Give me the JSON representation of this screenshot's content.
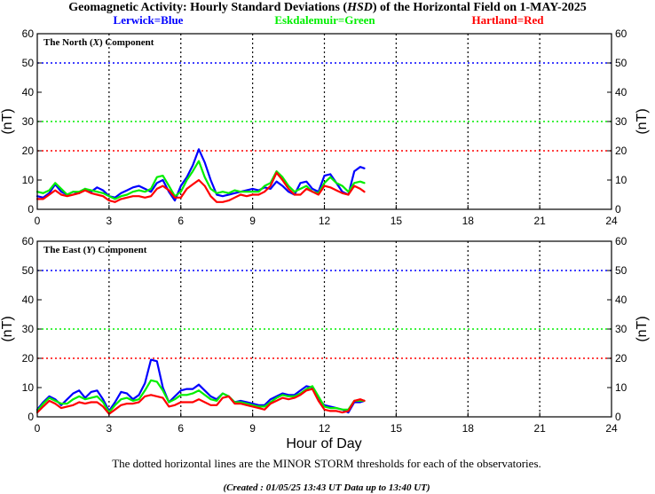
{
  "header": {
    "title_pre": "Geomagnetic Activity: Hourly Standard Deviations (",
    "title_italic": "HSD",
    "title_post": ") of the Horizontal Field on 1-MAY-2025",
    "legend": [
      {
        "label": "Lerwick=Blue",
        "color": "#0000ff"
      },
      {
        "label": "Eskdalemuir=Green",
        "color": "#00ee00"
      },
      {
        "label": "Hartland=Red",
        "color": "#ff0000"
      }
    ]
  },
  "footer": {
    "note": "The dotted horizontal lines are the MINOR STORM thresholds for each of the observatories.",
    "created": "(Created : 01/05/25 13:43 UT  Data up to 13:40 UT)"
  },
  "chart_data": [
    {
      "type": "line",
      "panel_pre": "The North (",
      "panel_italic": "X",
      "panel_post": ") Component",
      "ylabel": "(nT)",
      "xlabel": "",
      "xlim": [
        0,
        24
      ],
      "ylim": [
        0,
        60
      ],
      "xticks": [
        "0",
        "3",
        "6",
        "9",
        "12",
        "15",
        "18",
        "21",
        "24"
      ],
      "yticks": [
        "0",
        "10",
        "20",
        "30",
        "40",
        "50",
        "60"
      ],
      "thresholds": [
        {
          "observatory": "Lerwick",
          "value": 50,
          "color": "#0000ff"
        },
        {
          "observatory": "Eskdalemuir",
          "value": 30,
          "color": "#00ee00"
        },
        {
          "observatory": "Hartland",
          "value": 20,
          "color": "#ff0000"
        }
      ],
      "x": [
        0.0,
        0.25,
        0.5,
        0.75,
        1.0,
        1.25,
        1.5,
        1.75,
        2.0,
        2.25,
        2.5,
        2.75,
        3.0,
        3.25,
        3.5,
        3.75,
        4.0,
        4.25,
        4.5,
        4.75,
        5.0,
        5.25,
        5.5,
        5.75,
        6.0,
        6.25,
        6.5,
        6.75,
        7.0,
        7.25,
        7.5,
        7.75,
        8.0,
        8.25,
        8.5,
        8.75,
        9.0,
        9.25,
        9.5,
        9.75,
        10.0,
        10.25,
        10.5,
        10.75,
        11.0,
        11.25,
        11.5,
        11.75,
        12.0,
        12.25,
        12.5,
        12.75,
        13.0,
        13.25,
        13.5,
        13.67
      ],
      "series": [
        {
          "observatory": "Lerwick",
          "color": "#0000ff",
          "values": [
            4.5,
            4.0,
            5.5,
            8.5,
            6.0,
            5.0,
            6.0,
            5.5,
            7.0,
            6.0,
            7.5,
            6.5,
            4.5,
            4.0,
            5.5,
            6.5,
            7.5,
            8.0,
            7.0,
            6.0,
            9.0,
            10.0,
            6.0,
            3.0,
            8.0,
            11.0,
            15.0,
            20.5,
            16.0,
            10.0,
            5.0,
            4.5,
            5.0,
            5.5,
            6.0,
            6.5,
            7.0,
            6.5,
            7.5,
            7.0,
            9.5,
            8.0,
            6.0,
            5.0,
            9.0,
            9.5,
            7.0,
            6.0,
            11.5,
            12.0,
            9.0,
            6.0,
            5.0,
            13.0,
            14.5,
            14.0
          ]
        },
        {
          "observatory": "Eskdalemuir",
          "color": "#00ee00",
          "values": [
            6.0,
            5.5,
            6.5,
            9.0,
            7.0,
            5.0,
            6.0,
            6.0,
            7.0,
            6.5,
            6.0,
            5.5,
            4.5,
            3.5,
            4.5,
            5.0,
            6.0,
            6.5,
            6.0,
            7.0,
            11.0,
            11.5,
            8.0,
            4.5,
            6.0,
            10.0,
            13.0,
            16.5,
            11.0,
            7.0,
            5.5,
            6.0,
            5.5,
            6.5,
            6.0,
            6.0,
            6.0,
            6.0,
            8.0,
            9.0,
            13.0,
            11.0,
            8.0,
            6.0,
            7.0,
            8.0,
            6.0,
            5.5,
            9.0,
            11.0,
            9.0,
            8.0,
            6.0,
            9.0,
            9.5,
            9.0
          ]
        },
        {
          "observatory": "Hartland",
          "color": "#ff0000",
          "values": [
            3.5,
            3.5,
            5.0,
            6.5,
            5.0,
            4.5,
            5.0,
            5.5,
            6.5,
            5.5,
            5.0,
            4.5,
            3.0,
            2.5,
            3.5,
            4.0,
            4.5,
            4.5,
            4.0,
            4.5,
            7.0,
            8.0,
            6.5,
            4.0,
            4.0,
            7.0,
            8.5,
            10.0,
            8.0,
            4.5,
            2.5,
            2.5,
            3.0,
            4.0,
            5.0,
            4.5,
            5.0,
            5.0,
            6.0,
            8.0,
            12.5,
            10.0,
            7.0,
            5.0,
            5.0,
            7.0,
            6.0,
            5.0,
            8.0,
            7.5,
            6.5,
            5.5,
            5.0,
            8.0,
            7.0,
            6.0
          ]
        }
      ]
    },
    {
      "type": "line",
      "panel_pre": "The East (",
      "panel_italic": "Y",
      "panel_post": ") Component",
      "ylabel": "(nT)",
      "xlabel": "Hour of Day",
      "xlim": [
        0,
        24
      ],
      "ylim": [
        0,
        60
      ],
      "xticks": [
        "0",
        "3",
        "6",
        "9",
        "12",
        "15",
        "18",
        "21",
        "24"
      ],
      "yticks": [
        "0",
        "10",
        "20",
        "30",
        "40",
        "50",
        "60"
      ],
      "thresholds": [
        {
          "observatory": "Lerwick",
          "value": 50,
          "color": "#0000ff"
        },
        {
          "observatory": "Eskdalemuir",
          "value": 30,
          "color": "#00ee00"
        },
        {
          "observatory": "Hartland",
          "value": 20,
          "color": "#ff0000"
        }
      ],
      "x": [
        0.0,
        0.25,
        0.5,
        0.75,
        1.0,
        1.25,
        1.5,
        1.75,
        2.0,
        2.25,
        2.5,
        2.75,
        3.0,
        3.25,
        3.5,
        3.75,
        4.0,
        4.25,
        4.5,
        4.75,
        5.0,
        5.25,
        5.5,
        5.75,
        6.0,
        6.25,
        6.5,
        6.75,
        7.0,
        7.25,
        7.5,
        7.75,
        8.0,
        8.25,
        8.5,
        8.75,
        9.0,
        9.25,
        9.5,
        9.75,
        10.0,
        10.25,
        10.5,
        10.75,
        11.0,
        11.25,
        11.5,
        11.75,
        12.0,
        12.25,
        12.5,
        12.75,
        13.0,
        13.25,
        13.5,
        13.67
      ],
      "series": [
        {
          "observatory": "Lerwick",
          "color": "#0000ff",
          "values": [
            2.5,
            5.0,
            7.0,
            6.0,
            4.0,
            6.0,
            8.0,
            9.0,
            6.5,
            8.5,
            9.0,
            6.0,
            2.0,
            5.0,
            8.5,
            8.0,
            6.0,
            7.5,
            11.5,
            19.5,
            19.0,
            10.0,
            5.0,
            7.0,
            9.0,
            9.5,
            9.5,
            11.0,
            9.0,
            7.0,
            6.0,
            8.0,
            7.0,
            5.0,
            5.5,
            5.0,
            4.5,
            4.0,
            4.0,
            6.0,
            7.0,
            8.0,
            7.5,
            7.5,
            9.0,
            10.5,
            10.0,
            6.0,
            4.0,
            3.5,
            3.0,
            2.5,
            1.5,
            5.0,
            5.0,
            5.5
          ]
        },
        {
          "observatory": "Eskdalemuir",
          "color": "#00ee00",
          "values": [
            2.0,
            4.5,
            6.5,
            5.5,
            4.5,
            4.5,
            6.0,
            7.0,
            6.0,
            6.5,
            7.0,
            5.0,
            1.5,
            4.0,
            6.0,
            6.5,
            5.5,
            6.0,
            9.0,
            12.5,
            12.0,
            9.0,
            5.0,
            6.0,
            7.5,
            7.5,
            8.0,
            9.0,
            7.5,
            6.0,
            5.5,
            8.0,
            7.0,
            5.0,
            5.0,
            4.5,
            4.0,
            3.5,
            3.5,
            5.0,
            6.5,
            7.5,
            7.0,
            7.0,
            8.0,
            9.5,
            10.5,
            7.0,
            3.5,
            3.0,
            3.0,
            2.5,
            2.5,
            5.5,
            5.5,
            5.5
          ]
        },
        {
          "observatory": "Hartland",
          "color": "#ff0000",
          "values": [
            1.5,
            3.5,
            5.5,
            4.5,
            3.0,
            3.5,
            4.0,
            5.0,
            4.5,
            5.0,
            5.0,
            3.5,
            1.0,
            2.5,
            4.0,
            4.5,
            4.5,
            5.0,
            7.0,
            7.5,
            7.0,
            6.5,
            3.5,
            4.0,
            5.0,
            5.0,
            5.0,
            6.0,
            5.0,
            4.0,
            4.0,
            6.5,
            7.0,
            4.5,
            4.5,
            4.0,
            3.5,
            3.0,
            2.5,
            4.5,
            5.5,
            6.5,
            6.0,
            6.5,
            7.5,
            9.0,
            9.5,
            5.5,
            2.5,
            2.0,
            2.0,
            1.5,
            2.0,
            5.5,
            6.0,
            5.5
          ]
        }
      ]
    }
  ]
}
